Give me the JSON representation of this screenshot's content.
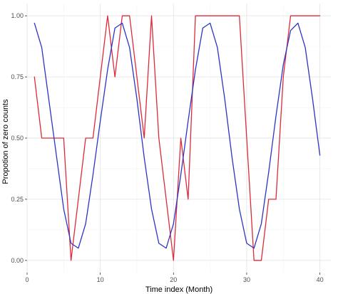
{
  "chart_data": {
    "type": "line",
    "title": "",
    "xlabel": "Time index (Month)",
    "ylabel": "Propotion of zero counts",
    "xlim": [
      0,
      41.5
    ],
    "ylim": [
      -0.05,
      1.05
    ],
    "xticks": [
      0,
      10,
      20,
      30,
      40
    ],
    "yticks": [
      0.0,
      0.25,
      0.5,
      0.75,
      1.0
    ],
    "xtick_labels": [
      "0",
      "10",
      "20",
      "30",
      "40"
    ],
    "ytick_labels": [
      "0.00",
      "0.25",
      "0.50",
      "0.75",
      "1.00"
    ],
    "grid": true,
    "legend": "none",
    "series": [
      {
        "color": "#dd2a3a",
        "x": [
          1,
          2,
          3,
          4,
          5,
          6,
          7,
          8,
          9,
          10,
          11,
          12,
          13,
          14,
          15,
          16,
          17,
          18,
          19,
          20,
          21,
          22,
          23,
          24,
          25,
          26,
          27,
          28,
          29,
          30,
          31,
          32,
          33,
          34,
          35,
          36,
          37,
          38,
          39,
          40
        ],
        "values": [
          0.75,
          0.5,
          0.5,
          0.5,
          0.5,
          0.0,
          0.25,
          0.5,
          0.5,
          0.75,
          1.0,
          0.75,
          1.0,
          1.0,
          0.75,
          0.5,
          1.0,
          0.5,
          0.25,
          0.0,
          0.5,
          0.25,
          1.0,
          1.0,
          1.0,
          1.0,
          1.0,
          1.0,
          1.0,
          0.5,
          0.0,
          0.0,
          0.25,
          0.25,
          0.75,
          1.0,
          1.0,
          1.0,
          1.0,
          1.0
        ]
      },
      {
        "color": "#2b35c4",
        "x": [
          1,
          2,
          3,
          4,
          5,
          6,
          7,
          8,
          9,
          10,
          11,
          12,
          13,
          14,
          15,
          16,
          17,
          18,
          19,
          20,
          21,
          22,
          23,
          24,
          25,
          26,
          27,
          28,
          29,
          30,
          31,
          32,
          33,
          34,
          35,
          36,
          37,
          38,
          39,
          40
        ],
        "values": [
          0.97,
          0.87,
          0.65,
          0.43,
          0.21,
          0.07,
          0.05,
          0.15,
          0.35,
          0.57,
          0.78,
          0.95,
          0.97,
          0.87,
          0.66,
          0.42,
          0.21,
          0.07,
          0.05,
          0.15,
          0.35,
          0.57,
          0.78,
          0.95,
          0.97,
          0.87,
          0.66,
          0.42,
          0.21,
          0.07,
          0.05,
          0.15,
          0.36,
          0.59,
          0.8,
          0.94,
          0.97,
          0.87,
          0.66,
          0.43
        ]
      }
    ]
  }
}
